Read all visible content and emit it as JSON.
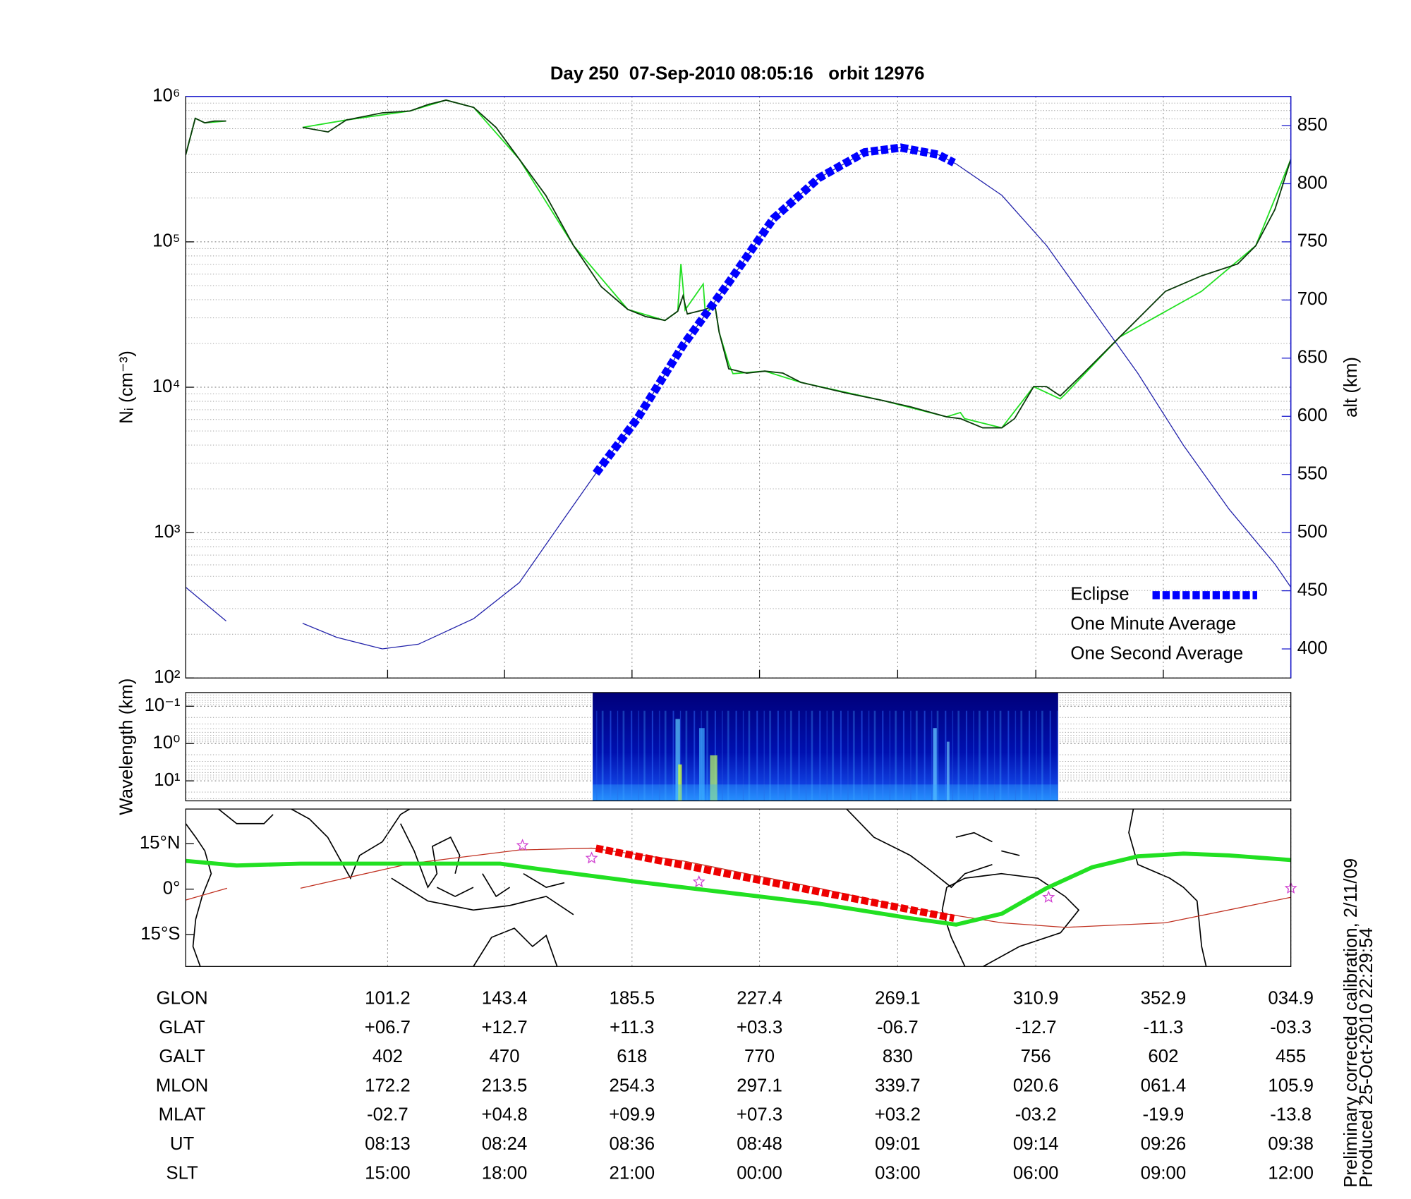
{
  "title": "Day 250  07-Sep-2010 08:05:16   orbit 12976",
  "chart_data": [
    {
      "type": "line",
      "ylabel": "Nᵢ (cm⁻³)",
      "y2label": "alt (km)",
      "xlim": [
        474,
        578
      ],
      "xticks": [
        {
          "value": 493,
          "label": "08:13"
        },
        {
          "value": 504,
          "label": "08:24"
        },
        {
          "value": 516,
          "label": "08:36"
        },
        {
          "value": 528,
          "label": "08:48"
        },
        {
          "value": 541,
          "label": "09:01"
        },
        {
          "value": 554,
          "label": "09:14"
        },
        {
          "value": 566,
          "label": "09:26"
        },
        {
          "value": 578,
          "label": "09:38"
        }
      ],
      "yscale": "log",
      "ylim": [
        100,
        1000000
      ],
      "yticks": [
        {
          "value": 100,
          "label": "10²"
        },
        {
          "value": 1000,
          "label": "10³"
        },
        {
          "value": 10000,
          "label": "10⁴"
        },
        {
          "value": 100000,
          "label": "10⁵"
        },
        {
          "value": 1000000,
          "label": "10⁶"
        }
      ],
      "y2lim": [
        375,
        875
      ],
      "y2ticks": [
        400,
        450,
        500,
        550,
        600,
        650,
        700,
        750,
        800,
        850
      ],
      "y2color": "#1a1acc",
      "grid": true,
      "legend": "lower right",
      "series": [
        {
          "name": "Eclipse",
          "color": "#0000ff",
          "axis": "y2",
          "marker": "square",
          "x": [
            512.6,
            516.5,
            520.8,
            525.1,
            529.3,
            533.6,
            537.9,
            541.3,
            544.8,
            546.3
          ],
          "values": [
            551,
            598,
            661,
            715,
            770,
            805,
            827,
            831,
            825,
            818
          ]
        },
        {
          "name": "One Minute Average",
          "color": "#0a3a0a",
          "x": [
            474.0,
            474.9,
            475.8,
            476.7,
            477.8,
            481.4,
            485.0,
            487.4,
            489.1,
            492.5,
            495.1,
            496.8,
            498.5,
            501.1,
            503.2,
            505.4,
            507.9,
            510.5,
            513.1,
            515.6,
            517.3,
            519.1,
            520.3,
            520.8,
            521.2,
            522.9,
            523.8,
            524.2,
            525.1,
            526.8,
            528.5,
            530.2,
            531.9,
            536.2,
            539.6,
            542.2,
            545.6,
            546.9,
            549.0,
            550.8,
            552.0,
            553.8,
            555.0,
            556.3,
            558.5,
            561.9,
            566.2,
            569.6,
            573.0,
            574.7,
            576.5,
            578.0
          ],
          "values": [
            397000,
            708000,
            658000,
            678000,
            678000,
            null,
            613000,
            570000,
            688000,
            771000,
            794000,
            879000,
            944000,
            841000,
            613000,
            370000,
            208000,
            94000,
            49200,
            34300,
            30600,
            28800,
            33300,
            42600,
            31900,
            34300,
            36900,
            23900,
            13400,
            12500,
            12900,
            12500,
            10800,
            9100,
            8100,
            7330,
            6260,
            6080,
            5260,
            5260,
            6080,
            10100,
            10100,
            8720,
            12500,
            22200,
            45700,
            58400,
            70500,
            94000,
            167000,
            370000
          ]
        },
        {
          "name": "One Second Average",
          "color": "#22e022",
          "x": [
            474.0,
            474.9,
            475.8,
            477.8,
            481.4,
            485.0,
            489.1,
            495.1,
            498.5,
            501.1,
            505.4,
            510.5,
            515.6,
            519.1,
            520.3,
            520.6,
            521.0,
            522.7,
            522.9,
            523.8,
            524.2,
            525.1,
            525.5,
            528.5,
            531.9,
            539.6,
            545.6,
            546.9,
            547.3,
            550.8,
            553.8,
            556.3,
            556.8,
            561.9,
            569.6,
            574.7,
            578.0
          ],
          "values": [
            397000,
            708000,
            658000,
            678000,
            null,
            613000,
            688000,
            794000,
            944000,
            841000,
            370000,
            94000,
            34300,
            28800,
            33300,
            70500,
            34000,
            51300,
            31900,
            36900,
            23900,
            14500,
            12400,
            12900,
            10800,
            8100,
            6260,
            6700,
            6080,
            5260,
            10100,
            8300,
            9000,
            22200,
            45700,
            94000,
            370000
          ]
        },
        {
          "color": "#2222aa",
          "axis": "y2",
          "x": [
            474.0,
            477.8,
            481.4,
            485.0,
            488.2,
            492.5,
            495.9,
            501.1,
            505.4,
            509.6,
            512.6,
            516.5,
            520.8,
            525.1,
            529.3,
            533.6,
            537.9,
            541.3,
            544.8,
            546.5,
            550.8,
            555.0,
            559.3,
            563.6,
            567.9,
            572.2,
            576.5,
            578.0
          ],
          "values": [
            453,
            424,
            null,
            422,
            410,
            400,
            404,
            426,
            457,
            512,
            551,
            598,
            661,
            715,
            770,
            805,
            827,
            831,
            825,
            817,
            790,
            747,
            692,
            637,
            575,
            520,
            473,
            453
          ]
        }
      ]
    },
    {
      "type": "spectrogram",
      "ylabel": "Wavelength (km)",
      "yscale": "log",
      "ylim": [
        34.4,
        0.043
      ],
      "yticks": [
        {
          "value": 0.1,
          "label": "10⁻¹"
        },
        {
          "value": 1,
          "label": "10⁰"
        },
        {
          "value": 10,
          "label": "10¹"
        }
      ],
      "xlim": [
        474,
        578
      ],
      "extent": [
        512.3,
        556.1
      ],
      "grid": true
    },
    {
      "type": "map",
      "ylim": [
        -25.5,
        26.4
      ],
      "yticks": [
        {
          "value": 15,
          "label": "15°N"
        },
        {
          "value": 0,
          "label": "0°"
        },
        {
          "value": -15,
          "label": "15°S"
        }
      ],
      "xlim": [
        474,
        578
      ],
      "grid": true,
      "series": [
        {
          "color": "#c03020",
          "x": [
            474.0,
            477.9,
            481.4,
            484.8,
            495.1,
            505.4,
            512.2,
            520.8,
            533.6,
            542.2,
            550.8,
            556.8,
            566.2,
            578.0
          ],
          "values": [
            -3.6,
            0.3,
            null,
            0.3,
            8.4,
            12.9,
            13.5,
            9.3,
            0.3,
            -6.3,
            -11.1,
            -12.6,
            -11.1,
            -2.7
          ]
        },
        {
          "color": "#22e022",
          "x": [
            474.0,
            478.8,
            484.8,
            492.5,
            503.6,
            507.9,
            516.5,
            525.1,
            533.6,
            542.2,
            546.5,
            550.8,
            555.0,
            559.3,
            563.6,
            567.9,
            572.2,
            578.0
          ],
          "values": [
            9.3,
            7.8,
            8.4,
            8.4,
            8.4,
            6.3,
            2.4,
            -1.2,
            -4.8,
            -9.6,
            -11.7,
            -8.1,
            0.3,
            7.2,
            10.8,
            11.7,
            11.1,
            9.6
          ]
        },
        {
          "color": "#ee0000",
          "marker": "square",
          "x": [
            512.6,
            546.3
          ],
          "values": [
            13.5,
            -9.6
          ]
        },
        {
          "color": "#d040d0",
          "marker": "star",
          "x": [
            505.7,
            512.2,
            522.3,
            555.2,
            578.0
          ],
          "values": [
            14.4,
            10.2,
            2.4,
            -2.7,
            0.3
          ]
        }
      ]
    }
  ],
  "table": {
    "rows": [
      {
        "label": "GLON",
        "values": [
          "101.2",
          "143.4",
          "185.5",
          "227.4",
          "269.1",
          "310.9",
          "352.9",
          "034.9"
        ]
      },
      {
        "label": "GLAT",
        "values": [
          "+06.7",
          "+12.7",
          "+11.3",
          "+03.3",
          "-06.7",
          "-12.7",
          "-11.3",
          "-03.3"
        ]
      },
      {
        "label": "GALT",
        "values": [
          "402",
          "470",
          "618",
          "770",
          "830",
          "756",
          "602",
          "455"
        ]
      },
      {
        "label": "MLON",
        "values": [
          "172.2",
          "213.5",
          "254.3",
          "297.1",
          "339.7",
          "020.6",
          "061.4",
          "105.9"
        ]
      },
      {
        "label": "MLAT",
        "values": [
          "-02.7",
          "+04.8",
          "+09.9",
          "+07.3",
          "+03.2",
          "-03.2",
          "-19.9",
          "-13.8"
        ]
      },
      {
        "label": "UT"
      },
      {
        "label": "SLT",
        "values": [
          "15:00",
          "18:00",
          "21:00",
          "00:00",
          "03:00",
          "06:00",
          "09:00",
          "12:00"
        ]
      }
    ]
  },
  "notes": [
    "Preliminary corrected calibration, 2/11/09",
    "Produced 25-Oct-2010 22:29:54"
  ]
}
